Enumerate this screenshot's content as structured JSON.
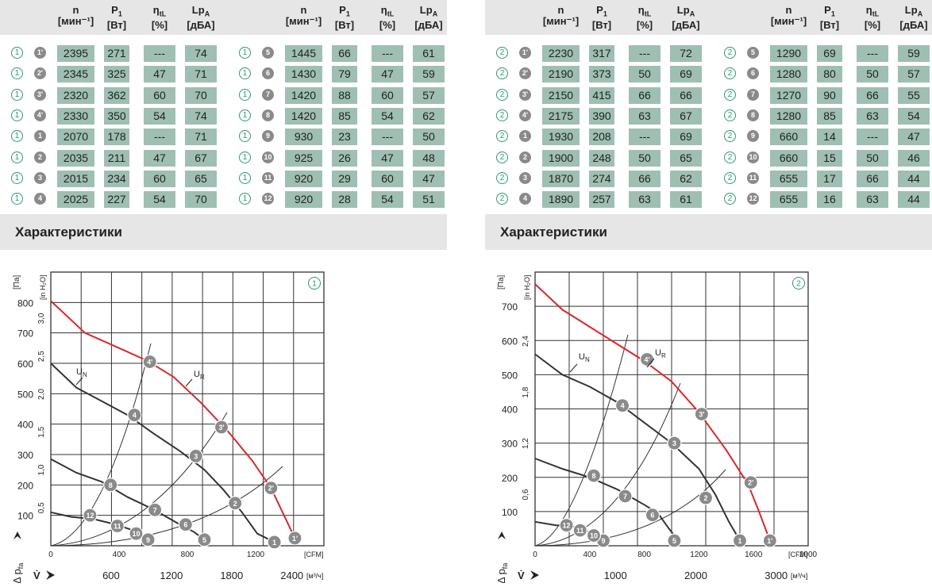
{
  "headers": {
    "n": "n",
    "n_unit": "[мин⁻¹]",
    "p": "P",
    "p_sub": "1",
    "p_unit": "[Вт]",
    "eta": "η",
    "eta_sub": "tL",
    "eta_unit": "[%]",
    "lp": "Lp",
    "lp_sub": "A",
    "lp_unit": "[дБА]"
  },
  "section_title": "Характеристики",
  "panels": [
    {
      "curve_label": "1",
      "left_rows": [
        {
          "o": "1",
          "pt": "1'",
          "n": "2395",
          "p": "271",
          "eta": "---",
          "lp": "74"
        },
        {
          "o": "1",
          "pt": "2'",
          "n": "2345",
          "p": "325",
          "eta": "47",
          "lp": "71"
        },
        {
          "o": "1",
          "pt": "3'",
          "n": "2320",
          "p": "362",
          "eta": "60",
          "lp": "70"
        },
        {
          "o": "1",
          "pt": "4'",
          "n": "2330",
          "p": "350",
          "eta": "54",
          "lp": "74"
        },
        {
          "o": "1",
          "pt": "1",
          "n": "2070",
          "p": "178",
          "eta": "---",
          "lp": "71"
        },
        {
          "o": "1",
          "pt": "2",
          "n": "2035",
          "p": "211",
          "eta": "47",
          "lp": "67"
        },
        {
          "o": "1",
          "pt": "3",
          "n": "2015",
          "p": "234",
          "eta": "60",
          "lp": "65"
        },
        {
          "o": "1",
          "pt": "4",
          "n": "2025",
          "p": "227",
          "eta": "54",
          "lp": "70"
        }
      ],
      "right_rows": [
        {
          "o": "1",
          "pt": "5",
          "n": "1445",
          "p": "66",
          "eta": "---",
          "lp": "61"
        },
        {
          "o": "1",
          "pt": "6",
          "n": "1430",
          "p": "79",
          "eta": "47",
          "lp": "59"
        },
        {
          "o": "1",
          "pt": "7",
          "n": "1420",
          "p": "88",
          "eta": "60",
          "lp": "57"
        },
        {
          "o": "1",
          "pt": "8",
          "n": "1420",
          "p": "85",
          "eta": "54",
          "lp": "62"
        },
        {
          "o": "1",
          "pt": "9",
          "n": "930",
          "p": "23",
          "eta": "---",
          "lp": "50"
        },
        {
          "o": "1",
          "pt": "10",
          "n": "925",
          "p": "26",
          "eta": "47",
          "lp": "48"
        },
        {
          "o": "1",
          "pt": "11",
          "n": "920",
          "p": "29",
          "eta": "60",
          "lp": "47"
        },
        {
          "o": "1",
          "pt": "12",
          "n": "920",
          "p": "28",
          "eta": "54",
          "lp": "51"
        }
      ]
    },
    {
      "curve_label": "2",
      "left_rows": [
        {
          "o": "2",
          "pt": "1'",
          "n": "2230",
          "p": "317",
          "eta": "---",
          "lp": "72"
        },
        {
          "o": "2",
          "pt": "2'",
          "n": "2190",
          "p": "373",
          "eta": "50",
          "lp": "69"
        },
        {
          "o": "2",
          "pt": "3'",
          "n": "2150",
          "p": "415",
          "eta": "66",
          "lp": "66"
        },
        {
          "o": "2",
          "pt": "4'",
          "n": "2175",
          "p": "390",
          "eta": "63",
          "lp": "67"
        },
        {
          "o": "2",
          "pt": "1",
          "n": "1930",
          "p": "208",
          "eta": "---",
          "lp": "69"
        },
        {
          "o": "2",
          "pt": "2",
          "n": "1900",
          "p": "248",
          "eta": "50",
          "lp": "65"
        },
        {
          "o": "2",
          "pt": "3",
          "n": "1870",
          "p": "274",
          "eta": "66",
          "lp": "62"
        },
        {
          "o": "2",
          "pt": "4",
          "n": "1890",
          "p": "257",
          "eta": "63",
          "lp": "61"
        }
      ],
      "right_rows": [
        {
          "o": "2",
          "pt": "5",
          "n": "1290",
          "p": "69",
          "eta": "---",
          "lp": "59"
        },
        {
          "o": "2",
          "pt": "6",
          "n": "1280",
          "p": "80",
          "eta": "50",
          "lp": "57"
        },
        {
          "o": "2",
          "pt": "7",
          "n": "1270",
          "p": "90",
          "eta": "66",
          "lp": "55"
        },
        {
          "o": "2",
          "pt": "8",
          "n": "1280",
          "p": "85",
          "eta": "63",
          "lp": "54"
        },
        {
          "o": "2",
          "pt": "9",
          "n": "660",
          "p": "14",
          "eta": "---",
          "lp": "47"
        },
        {
          "o": "2",
          "pt": "10",
          "n": "660",
          "p": "15",
          "eta": "50",
          "lp": "46"
        },
        {
          "o": "2",
          "pt": "11",
          "n": "655",
          "p": "17",
          "eta": "66",
          "lp": "44"
        },
        {
          "o": "2",
          "pt": "12",
          "n": "655",
          "p": "16",
          "eta": "63",
          "lp": "44"
        }
      ]
    }
  ],
  "chart_data": [
    {
      "type": "line",
      "curve_label": "1",
      "x_cfm_label": "[CFM]",
      "x_m3h_label": "[м³/ч]",
      "y_pa_label": "[Па]",
      "y_inh2o_label": "[in H₂O]",
      "xlabel": "V̇",
      "ylabel": "Δ p_fa",
      "xlim_cfm": [
        0,
        1600
      ],
      "ylim_pa": [
        0,
        900
      ],
      "x_ticks_cfm": [
        "0",
        "400",
        "800",
        "1200"
      ],
      "x_ticks_m3h": [
        "600",
        "1200",
        "1800",
        "2400"
      ],
      "y_ticks_pa": [
        "100",
        "200",
        "300",
        "400",
        "500",
        "600",
        "700",
        "800"
      ],
      "y_ticks_inh2o": [
        "0,5",
        "1,0",
        "1,5",
        "2,0",
        "2,5",
        "3,0"
      ],
      "grid": true,
      "series": [
        {
          "name": "U_R",
          "color": "#d8282a",
          "points": [
            [
              0,
              805
            ],
            [
              200,
              700
            ],
            [
              400,
              650
            ],
            [
              560,
              610
            ],
            [
              720,
              555
            ],
            [
              880,
              470
            ],
            [
              1040,
              375
            ],
            [
              1180,
              280
            ],
            [
              1290,
              190
            ],
            [
              1430,
              25
            ]
          ]
        },
        {
          "name": "U_N",
          "color": "#333333",
          "points": [
            [
              0,
              600
            ],
            [
              150,
              520
            ],
            [
              300,
              475
            ],
            [
              450,
              430
            ],
            [
              600,
              370
            ],
            [
              760,
              310
            ],
            [
              900,
              250
            ],
            [
              1010,
              185
            ],
            [
              1120,
              110
            ],
            [
              1210,
              40
            ],
            [
              1310,
              12
            ]
          ]
        },
        {
          "name": "",
          "color": "#333333",
          "points": [
            [
              0,
              285
            ],
            [
              150,
              240
            ],
            [
              300,
              210
            ],
            [
              450,
              160
            ],
            [
              600,
              120
            ],
            [
              740,
              75
            ],
            [
              840,
              45
            ],
            [
              900,
              20
            ]
          ]
        },
        {
          "name": "",
          "color": "#333333",
          "points": [
            [
              0,
              110
            ],
            [
              120,
              95
            ],
            [
              250,
              88
            ],
            [
              380,
              70
            ],
            [
              460,
              55
            ],
            [
              540,
              35
            ],
            [
              570,
              25
            ]
          ]
        }
      ],
      "points": [
        {
          "label": "1'",
          "x": 1430,
          "y": 25
        },
        {
          "label": "2'",
          "x": 1290,
          "y": 190
        },
        {
          "label": "3'",
          "x": 1000,
          "y": 390
        },
        {
          "label": "4'",
          "x": 580,
          "y": 605
        },
        {
          "label": "1",
          "x": 1310,
          "y": 12
        },
        {
          "label": "2",
          "x": 1080,
          "y": 140
        },
        {
          "label": "3",
          "x": 850,
          "y": 295
        },
        {
          "label": "4",
          "x": 490,
          "y": 430
        },
        {
          "label": "5",
          "x": 900,
          "y": 20
        },
        {
          "label": "6",
          "x": 790,
          "y": 70
        },
        {
          "label": "7",
          "x": 610,
          "y": 118
        },
        {
          "label": "8",
          "x": 350,
          "y": 200
        },
        {
          "label": "9",
          "x": 570,
          "y": 20
        },
        {
          "label": "10",
          "x": 500,
          "y": 40
        },
        {
          "label": "11",
          "x": 390,
          "y": 65
        },
        {
          "label": "12",
          "x": 230,
          "y": 100
        }
      ],
      "annotations": [
        "U_N",
        "U_R"
      ]
    },
    {
      "type": "line",
      "curve_label": "2",
      "x_cfm_label": "[CFM]",
      "x_m3h_label": "[м³/ч]",
      "y_pa_label": "[Па]",
      "y_inh2o_label": "[in H₂O]",
      "xlabel": "V̇",
      "ylabel": "Δ p_fa",
      "xlim_cfm": [
        0,
        2000
      ],
      "ylim_pa": [
        0,
        800
      ],
      "x_ticks_cfm": [
        "0",
        "400",
        "800",
        "1200",
        "1600",
        "2000"
      ],
      "x_ticks_m3h": [
        "1000",
        "2000",
        "3000"
      ],
      "y_ticks_pa": [
        "100",
        "200",
        "300",
        "400",
        "500",
        "600",
        "700"
      ],
      "y_ticks_inh2o": [
        "0,6",
        "1,2",
        "1,8",
        "2,4"
      ],
      "grid": true,
      "series": [
        {
          "name": "U_R",
          "color": "#d8282a",
          "points": [
            [
              0,
              765
            ],
            [
              200,
              690
            ],
            [
              400,
              640
            ],
            [
              600,
              590
            ],
            [
              800,
              540
            ],
            [
              1000,
              480
            ],
            [
              1200,
              390
            ],
            [
              1400,
              280
            ],
            [
              1560,
              180
            ],
            [
              1640,
              100
            ],
            [
              1720,
              15
            ]
          ]
        },
        {
          "name": "U_N",
          "color": "#333333",
          "points": [
            [
              0,
              560
            ],
            [
              200,
              500
            ],
            [
              400,
              465
            ],
            [
              600,
              420
            ],
            [
              800,
              360
            ],
            [
              1000,
              300
            ],
            [
              1200,
              225
            ],
            [
              1320,
              150
            ],
            [
              1420,
              70
            ],
            [
              1500,
              15
            ]
          ]
        },
        {
          "name": "",
          "color": "#333333",
          "points": [
            [
              0,
              255
            ],
            [
              200,
              225
            ],
            [
              400,
              200
            ],
            [
              600,
              165
            ],
            [
              800,
              120
            ],
            [
              900,
              95
            ],
            [
              980,
              50
            ],
            [
              1050,
              15
            ]
          ]
        },
        {
          "name": "",
          "color": "#333333",
          "points": [
            [
              0,
              70
            ],
            [
              150,
              60
            ],
            [
              300,
              55
            ],
            [
              420,
              35
            ],
            [
              500,
              15
            ]
          ]
        }
      ],
      "points": [
        {
          "label": "1'",
          "x": 1720,
          "y": 15
        },
        {
          "label": "2'",
          "x": 1580,
          "y": 185
        },
        {
          "label": "3'",
          "x": 1220,
          "y": 385
        },
        {
          "label": "4'",
          "x": 820,
          "y": 545
        },
        {
          "label": "1",
          "x": 1500,
          "y": 15
        },
        {
          "label": "2",
          "x": 1250,
          "y": 140
        },
        {
          "label": "3",
          "x": 1020,
          "y": 300
        },
        {
          "label": "4",
          "x": 640,
          "y": 410
        },
        {
          "label": "5",
          "x": 1020,
          "y": 15
        },
        {
          "label": "6",
          "x": 860,
          "y": 90
        },
        {
          "label": "7",
          "x": 660,
          "y": 145
        },
        {
          "label": "8",
          "x": 430,
          "y": 205
        },
        {
          "label": "9",
          "x": 500,
          "y": 15
        },
        {
          "label": "10",
          "x": 430,
          "y": 30
        },
        {
          "label": "11",
          "x": 330,
          "y": 45
        },
        {
          "label": "12",
          "x": 230,
          "y": 60
        }
      ],
      "annotations": [
        "U_N",
        "U_R"
      ]
    }
  ]
}
